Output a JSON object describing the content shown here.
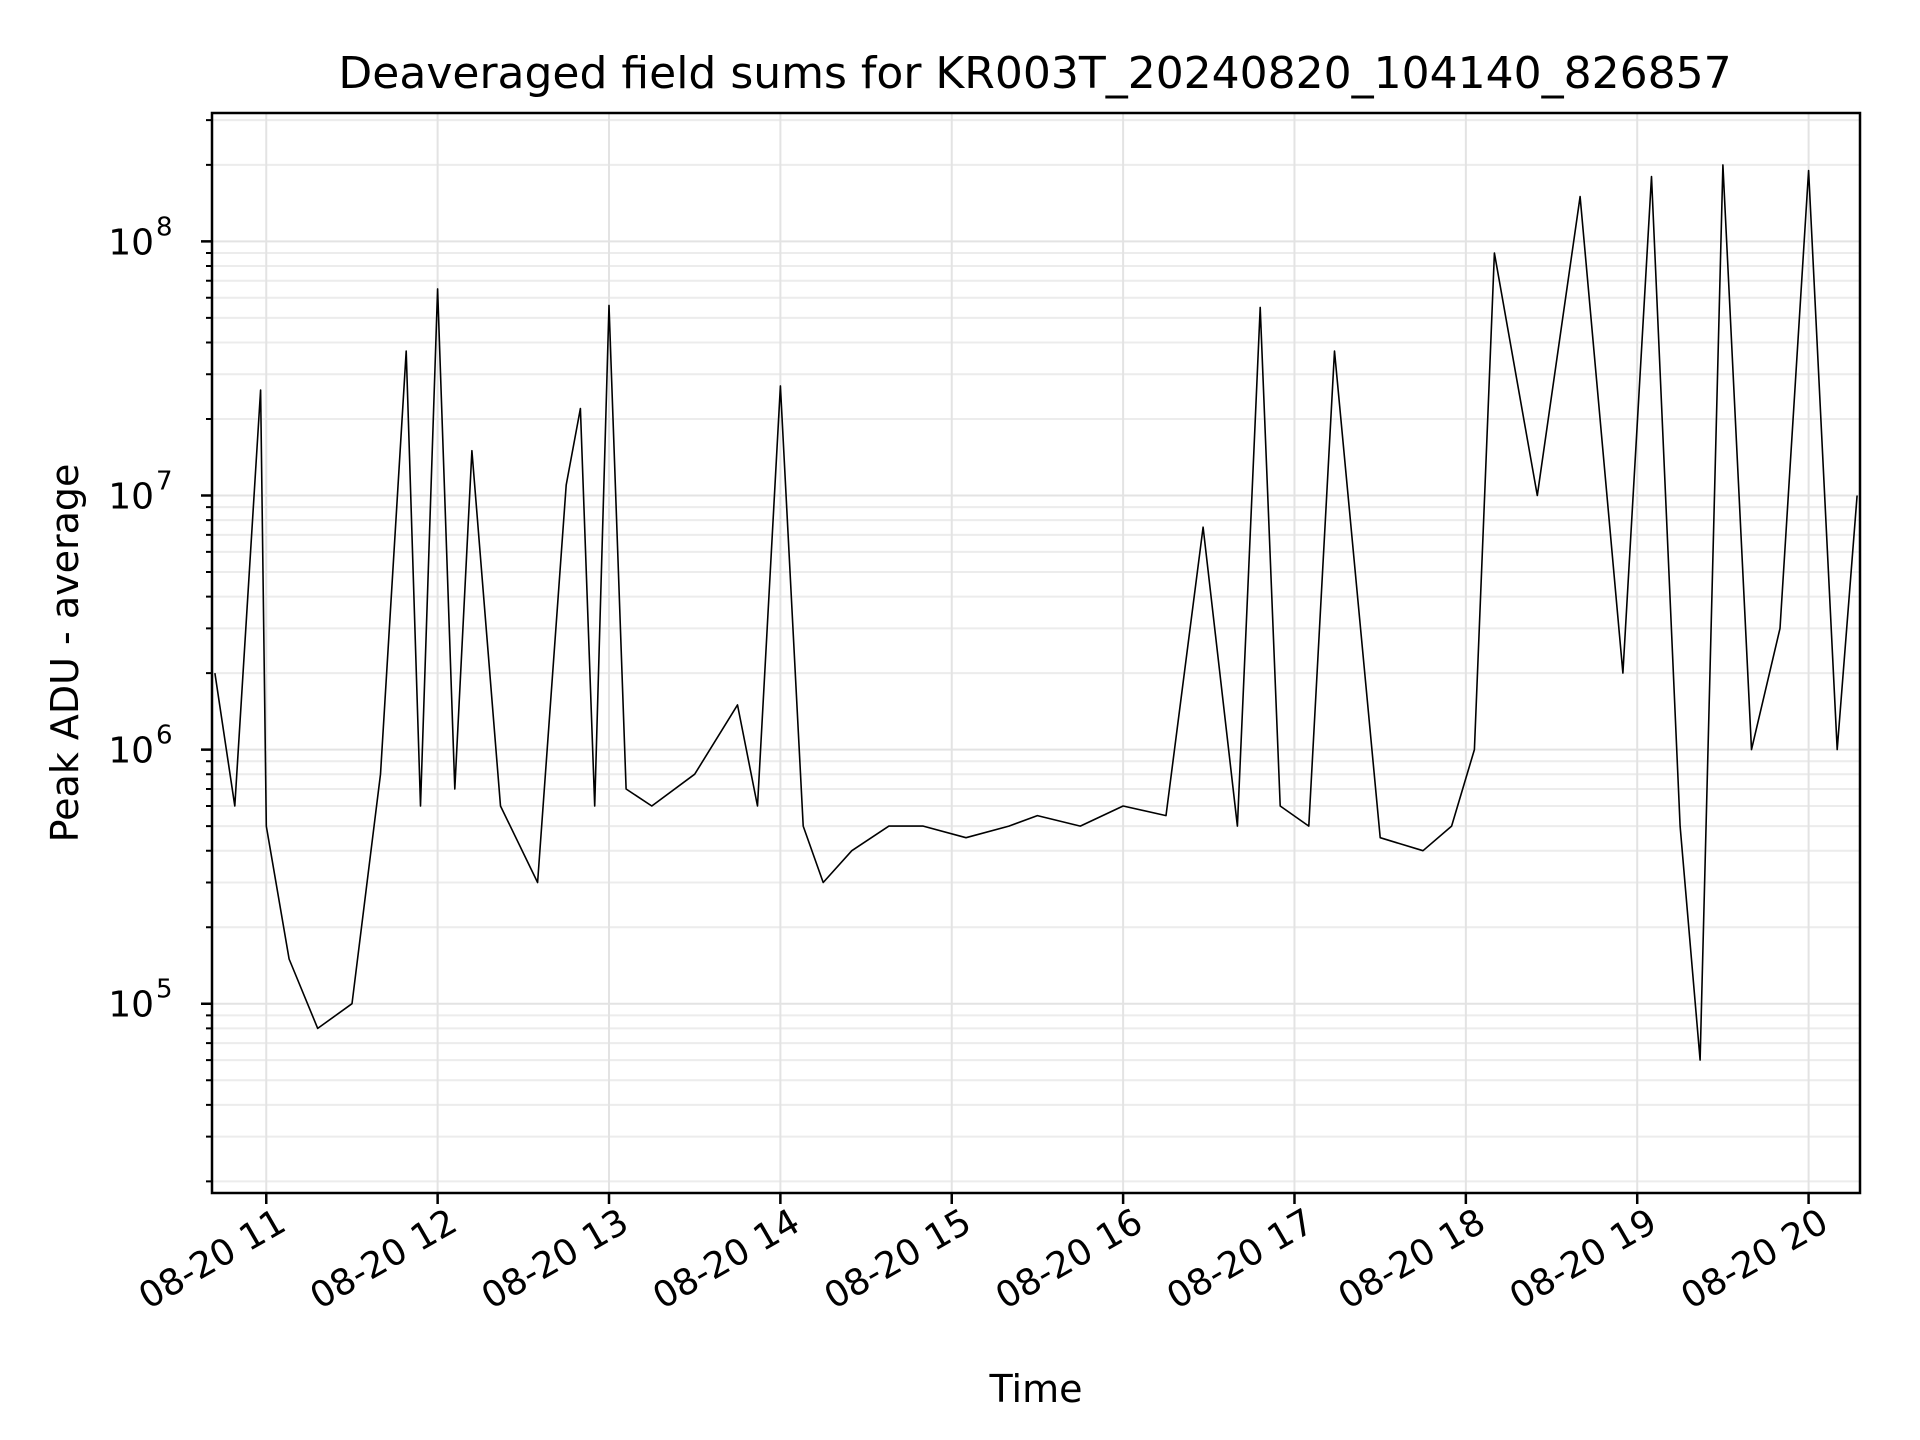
{
  "chart_data": {
    "type": "line",
    "title": "Deaveraged field sums for KR003T_20240820_104140_826857",
    "xlabel": "Time",
    "ylabel": "Peak ADU - average",
    "y_scale": "log",
    "ylim": [
      18000,
      320000000
    ],
    "xlim": [
      "2024-08-20 10:41",
      "2024-08-20 20:18"
    ],
    "x_ticks": [
      {
        "label": "08-20 11",
        "time": "2024-08-20 11:00"
      },
      {
        "label": "08-20 12",
        "time": "2024-08-20 12:00"
      },
      {
        "label": "08-20 13",
        "time": "2024-08-20 13:00"
      },
      {
        "label": "08-20 14",
        "time": "2024-08-20 14:00"
      },
      {
        "label": "08-20 15",
        "time": "2024-08-20 15:00"
      },
      {
        "label": "08-20 16",
        "time": "2024-08-20 16:00"
      },
      {
        "label": "08-20 17",
        "time": "2024-08-20 17:00"
      },
      {
        "label": "08-20 18",
        "time": "2024-08-20 18:00"
      },
      {
        "label": "08-20 19",
        "time": "2024-08-20 19:00"
      },
      {
        "label": "08-20 20",
        "time": "2024-08-20 20:00"
      }
    ],
    "y_ticks": [
      {
        "base": "10",
        "exp": "5",
        "value": 100000
      },
      {
        "base": "10",
        "exp": "6",
        "value": 1000000
      },
      {
        "base": "10",
        "exp": "7",
        "value": 10000000
      },
      {
        "base": "10",
        "exp": "8",
        "value": 100000000
      }
    ],
    "grid": true,
    "line_color": "#000000",
    "series": [
      {
        "x": [
          "2024-08-20 10:42",
          "2024-08-20 10:49",
          "2024-08-20 10:58",
          "2024-08-20 11:00",
          "2024-08-20 11:08",
          "2024-08-20 11:18",
          "2024-08-20 11:30",
          "2024-08-20 11:40",
          "2024-08-20 11:49",
          "2024-08-20 11:54",
          "2024-08-20 12:00",
          "2024-08-20 12:06",
          "2024-08-20 12:12",
          "2024-08-20 12:22",
          "2024-08-20 12:35",
          "2024-08-20 12:45",
          "2024-08-20 12:50",
          "2024-08-20 12:55",
          "2024-08-20 13:00",
          "2024-08-20 13:06",
          "2024-08-20 13:15",
          "2024-08-20 13:30",
          "2024-08-20 13:45",
          "2024-08-20 13:52",
          "2024-08-20 14:00",
          "2024-08-20 14:08",
          "2024-08-20 14:15",
          "2024-08-20 14:25",
          "2024-08-20 14:38",
          "2024-08-20 14:50",
          "2024-08-20 15:05",
          "2024-08-20 15:20",
          "2024-08-20 15:30",
          "2024-08-20 15:45",
          "2024-08-20 16:00",
          "2024-08-20 16:15",
          "2024-08-20 16:28",
          "2024-08-20 16:40",
          "2024-08-20 16:48",
          "2024-08-20 16:55",
          "2024-08-20 17:05",
          "2024-08-20 17:14",
          "2024-08-20 17:30",
          "2024-08-20 17:45",
          "2024-08-20 17:55",
          "2024-08-20 18:03",
          "2024-08-20 18:10",
          "2024-08-20 18:25",
          "2024-08-20 18:40",
          "2024-08-20 18:55",
          "2024-08-20 19:05",
          "2024-08-20 19:15",
          "2024-08-20 19:22",
          "2024-08-20 19:30",
          "2024-08-20 19:40",
          "2024-08-20 19:50",
          "2024-08-20 20:00",
          "2024-08-20 20:10",
          "2024-08-20 20:17"
        ],
        "y": [
          2000000,
          600000,
          26000000,
          500000,
          150000,
          80000,
          100000,
          800000,
          37000000,
          600000,
          65000000,
          700000,
          15000000,
          600000,
          300000,
          11000000,
          22000000,
          600000,
          56000000,
          700000,
          600000,
          800000,
          1500000,
          600000,
          27000000,
          500000,
          300000,
          400000,
          500000,
          500000,
          450000,
          500000,
          550000,
          500000,
          600000,
          550000,
          7500000,
          500000,
          55000000,
          600000,
          500000,
          37000000,
          450000,
          400000,
          500000,
          1000000,
          90000000,
          10000000,
          150000000,
          2000000,
          180000000,
          500000,
          60000,
          200000000,
          1000000,
          3000000,
          190000000,
          1000000,
          10000000
        ]
      }
    ]
  }
}
